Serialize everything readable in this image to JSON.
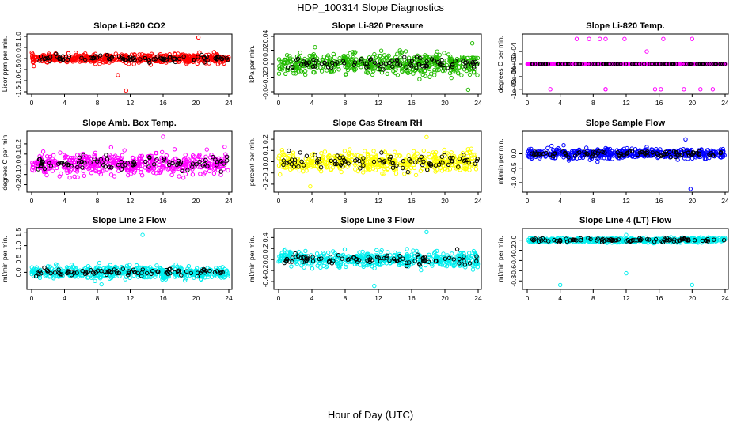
{
  "page": {
    "title": "HDP_100314  Slope Diagnostics",
    "xlabel": "Hour of Day (UTC)"
  },
  "chart_data": [
    {
      "type": "scatter",
      "title": "Slope Li-820 CO2",
      "ylabel": "Licor ppm per min.",
      "xlim": [
        0,
        24
      ],
      "ylim": [
        -1.5,
        1.0
      ],
      "xticks": [
        "0",
        "4",
        "8",
        "12",
        "16",
        "20",
        "24"
      ],
      "yticks": [
        -1.5,
        -1.0,
        -0.5,
        0.0,
        0.5,
        1.0
      ],
      "ytick_labels": [
        "-1.5",
        "-1.0",
        "-0.5",
        "0.0",
        "0.5",
        "1.0"
      ],
      "color": "#ff0000",
      "spread": 0.18,
      "outliers": [
        [
          11.5,
          -1.45
        ],
        [
          20.3,
          0.95
        ],
        [
          10.5,
          -0.75
        ]
      ],
      "black_spread": 0.12
    },
    {
      "type": "scatter",
      "title": "Slope Li-820 Pressure",
      "ylabel": "kPa per min.",
      "xlim": [
        0,
        24
      ],
      "ylim": [
        -0.04,
        0.04
      ],
      "xticks": [
        "0",
        "4",
        "8",
        "12",
        "16",
        "20",
        "24"
      ],
      "yticks": [
        -0.04,
        -0.02,
        0.0,
        0.02,
        0.04
      ],
      "ytick_labels": [
        "-0.04",
        "-0.02",
        "0.00",
        "0.02",
        "0.04"
      ],
      "color": "#22bb00",
      "spread": 0.014,
      "outliers": [
        [
          23.3,
          0.03
        ],
        [
          22.8,
          -0.037
        ]
      ],
      "black_spread": 0.008
    },
    {
      "type": "scatter",
      "title": "Slope Li-820 Temp.",
      "ylabel": "degrees C per min.",
      "xlim": [
        0,
        24
      ],
      "ylim": [
        -0.0011,
        0.0011
      ],
      "xticks": [
        "0",
        "4",
        "8",
        "12",
        "16",
        "20",
        "24"
      ],
      "yticks": [
        -0.001,
        -0.0005,
        0.0,
        0.0005
      ],
      "ytick_labels": [
        "-1e-03",
        "-5e-04",
        "0e+00",
        "5e-04"
      ],
      "color": "#ff00ff",
      "spread": 0.0,
      "outliers": [
        [
          6,
          0.001
        ],
        [
          7.5,
          0.001
        ],
        [
          8.8,
          0.001
        ],
        [
          9.5,
          0.001
        ],
        [
          11.8,
          0.001
        ],
        [
          16.5,
          0.001
        ],
        [
          20,
          0.001
        ],
        [
          2.8,
          -0.001
        ],
        [
          9.5,
          -0.001
        ],
        [
          15.5,
          -0.001
        ],
        [
          16.2,
          -0.001
        ],
        [
          19,
          -0.001
        ],
        [
          21,
          -0.001
        ],
        [
          22.5,
          -0.001
        ],
        [
          14.5,
          0.0005
        ],
        [
          9.5,
          -0.001
        ]
      ],
      "black_spread": 0.0
    },
    {
      "type": "scatter",
      "title": "Slope Amb. Box Temp.",
      "ylabel": "degrees C per min.",
      "xlim": [
        0,
        24
      ],
      "ylim": [
        -0.25,
        0.3
      ],
      "xticks": [
        "0",
        "4",
        "8",
        "12",
        "16",
        "20",
        "24"
      ],
      "yticks": [
        -0.2,
        -0.1,
        0.0,
        0.1,
        0.2
      ],
      "ytick_labels": [
        "-0.2",
        "-0.1",
        "0.0",
        "0.1",
        "0.2"
      ],
      "color": "#ff00ff",
      "spread": 0.09,
      "outliers": [
        [
          16,
          0.27
        ],
        [
          23.5,
          0.17
        ]
      ],
      "black_spread": 0.06
    },
    {
      "type": "scatter",
      "title": "Slope Gas Stream RH",
      "ylabel": "percent per min.",
      "xlim": [
        0,
        24
      ],
      "ylim": [
        -0.25,
        0.25
      ],
      "xticks": [
        "0",
        "4",
        "8",
        "12",
        "16",
        "20",
        "24"
      ],
      "yticks": [
        -0.2,
        -0.1,
        0.0,
        0.1,
        0.2
      ],
      "ytick_labels": [
        "-0.2",
        "-0.1",
        "0.0",
        "0.1",
        "0.2"
      ],
      "color": "#ffff00",
      "spread": 0.08,
      "outliers": [
        [
          17.8,
          0.22
        ],
        [
          3.8,
          -0.22
        ]
      ],
      "black_spread": 0.06
    },
    {
      "type": "scatter",
      "title": "Slope Sample Flow",
      "ylabel": "ml/min per min.",
      "xlim": [
        0,
        24
      ],
      "ylim": [
        -1.25,
        0.7
      ],
      "xticks": [
        "0",
        "4",
        "8",
        "12",
        "16",
        "20",
        "24"
      ],
      "yticks": [
        -1.0,
        -0.5,
        0.0
      ],
      "ytick_labels": [
        "-1.0",
        "-0.5",
        "0.0"
      ],
      "color": "#0000ff",
      "spread": 0.15,
      "outliers": [
        [
          19.8,
          -1.22
        ],
        [
          19.2,
          0.5
        ]
      ],
      "black_spread": 0.1
    },
    {
      "type": "scatter",
      "title": "Slope Line 2 Flow",
      "ylabel": "ml/min per min.",
      "xlim": [
        0,
        24
      ],
      "ylim": [
        -0.55,
        1.55
      ],
      "xticks": [
        "0",
        "4",
        "8",
        "12",
        "16",
        "20",
        "24"
      ],
      "yticks": [
        0.0,
        0.5,
        1.0,
        1.5
      ],
      "ytick_labels": [
        "0.0",
        "0.5",
        "1.0",
        "1.5"
      ],
      "color": "#00eeee",
      "spread": 0.2,
      "outliers": [
        [
          13.5,
          1.4
        ],
        [
          8.5,
          -0.45
        ]
      ],
      "black_spread": 0.12
    },
    {
      "type": "scatter",
      "title": "Slope Line 3 Flow",
      "ylabel": "ml/min per min.",
      "xlim": [
        0,
        24
      ],
      "ylim": [
        -0.5,
        0.52
      ],
      "xticks": [
        "0",
        "4",
        "8",
        "12",
        "16",
        "20",
        "24"
      ],
      "yticks": [
        -0.4,
        -0.2,
        0.0,
        0.2,
        0.4
      ],
      "ytick_labels": [
        "-0.4",
        "-0.2",
        "0.0",
        "0.2",
        "0.4"
      ],
      "color": "#00eeee",
      "spread": 0.12,
      "outliers": [
        [
          17.8,
          0.5
        ],
        [
          11.5,
          -0.48
        ]
      ],
      "black_spread": 0.08
    },
    {
      "type": "scatter",
      "title": "Slope Line 4 (LT) Flow",
      "ylabel": "ml/min per min.",
      "xlim": [
        0,
        24
      ],
      "ylim": [
        -0.92,
        0.18
      ],
      "xticks": [
        "0",
        "4",
        "8",
        "12",
        "16",
        "20",
        "24"
      ],
      "yticks": [
        -0.8,
        -0.6,
        -0.4,
        -0.2,
        0.0
      ],
      "ytick_labels": [
        "-0.8",
        "-0.6",
        "-0.4",
        "-0.2",
        "0.0"
      ],
      "color": "#00eeee",
      "spread": 0.04,
      "outliers": [
        [
          4,
          -0.88
        ],
        [
          12,
          -0.65
        ],
        [
          20,
          -0.88
        ],
        [
          12,
          0.1
        ]
      ],
      "black_spread": 0.03
    }
  ]
}
